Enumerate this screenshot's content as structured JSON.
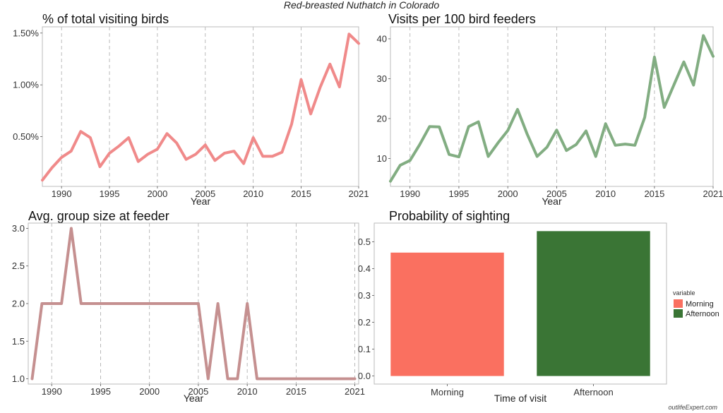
{
  "figure_title": "Red-breasted Nuthatch in Colorado",
  "watermark": "outlifeExpert.com",
  "colors": {
    "pct_line": "#f08a8a",
    "visits_line": "#82ad82",
    "group_line": "#c59090",
    "morning": "#fa7060",
    "afternoon": "#3a7535"
  },
  "chart_data": [
    {
      "type": "line",
      "title": "% of total visiting birds",
      "xlabel": "Year",
      "ylabel": "",
      "xlim": [
        1988,
        2021
      ],
      "ylim": [
        0.02,
        1.56
      ],
      "xticks": [
        1990,
        1995,
        2000,
        2005,
        2010,
        2015,
        2021
      ],
      "yticks": [
        0.5,
        1.0,
        1.5
      ],
      "ytick_labels": [
        "0.50%",
        "1.00%",
        "1.50%"
      ],
      "vgrid": true,
      "x": [
        1988,
        1989,
        1990,
        1991,
        1992,
        1993,
        1994,
        1995,
        1996,
        1997,
        1998,
        1999,
        2000,
        2001,
        2002,
        2003,
        2004,
        2005,
        2006,
        2007,
        2008,
        2009,
        2010,
        2011,
        2012,
        2013,
        2014,
        2015,
        2016,
        2017,
        2018,
        2019,
        2020,
        2021
      ],
      "y": [
        0.08,
        0.2,
        0.3,
        0.36,
        0.55,
        0.49,
        0.21,
        0.34,
        0.41,
        0.49,
        0.26,
        0.33,
        0.38,
        0.53,
        0.44,
        0.28,
        0.33,
        0.42,
        0.27,
        0.34,
        0.36,
        0.24,
        0.49,
        0.31,
        0.31,
        0.35,
        0.62,
        1.05,
        0.72,
        0.98,
        1.2,
        0.98,
        1.49,
        1.4
      ]
    },
    {
      "type": "line",
      "title": "Visits per 100 bird feeders",
      "xlabel": "Year",
      "ylabel": "",
      "xlim": [
        1988,
        2021
      ],
      "ylim": [
        3,
        43
      ],
      "xticks": [
        1990,
        1995,
        2000,
        2005,
        2010,
        2015,
        2021
      ],
      "yticks": [
        10,
        20,
        30,
        40
      ],
      "ytick_labels": [
        "10",
        "20",
        "30",
        "40"
      ],
      "vgrid": true,
      "x": [
        1988,
        1989,
        1990,
        1991,
        1992,
        1993,
        1994,
        1995,
        1996,
        1997,
        1998,
        1999,
        2000,
        2001,
        2002,
        2003,
        2004,
        2005,
        2006,
        2007,
        2008,
        2009,
        2010,
        2011,
        2012,
        2013,
        2014,
        2015,
        2016,
        2017,
        2018,
        2019,
        2020,
        2021
      ],
      "y": [
        4.3,
        8.3,
        9.5,
        13.5,
        18,
        17.9,
        11,
        10.4,
        18,
        19.2,
        10.5,
        13.9,
        17,
        22.3,
        16,
        10.5,
        12.8,
        17.1,
        12,
        13.5,
        16.9,
        10.5,
        18.7,
        13.3,
        13.6,
        13.3,
        20.3,
        35.4,
        22.8,
        28.5,
        34.2,
        28.4,
        40.8,
        35.6
      ]
    },
    {
      "type": "line",
      "title": "Avg. group size at feeder",
      "xlabel": "Year",
      "ylabel": "",
      "xlim": [
        1987.6,
        2021.4
      ],
      "ylim": [
        0.93,
        3.07
      ],
      "xticks": [
        1990,
        1995,
        2000,
        2005,
        2010,
        2015,
        2021
      ],
      "yticks": [
        1.0,
        1.5,
        2.0,
        2.5,
        3.0
      ],
      "ytick_labels": [
        "1.0",
        "1.5",
        "2.0",
        "2.5",
        "3.0"
      ],
      "vgrid": true,
      "x": [
        1988,
        1989,
        1990,
        1991,
        1992,
        1993,
        1994,
        1995,
        1996,
        1997,
        1998,
        1999,
        2000,
        2001,
        2002,
        2003,
        2004,
        2005,
        2006,
        2007,
        2008,
        2009,
        2010,
        2011,
        2012,
        2013,
        2014,
        2015,
        2016,
        2017,
        2018,
        2019,
        2020,
        2021
      ],
      "y": [
        1,
        2,
        2,
        2,
        3,
        2,
        2,
        2,
        2,
        2,
        2,
        2,
        2,
        2,
        2,
        2,
        2,
        2,
        1,
        2,
        1,
        1,
        2,
        1,
        1,
        1,
        1,
        1,
        1,
        1,
        1,
        1,
        1,
        1
      ]
    },
    {
      "type": "bar",
      "title": "Probability of sighting",
      "xlabel": "Time of visit",
      "ylabel": "",
      "categories": [
        "Morning",
        "Afternoon"
      ],
      "values": [
        0.46,
        0.54
      ],
      "ylim": [
        -0.03,
        0.57
      ],
      "yticks": [
        0.0,
        0.1,
        0.2,
        0.3,
        0.4,
        0.5
      ],
      "ytick_labels": [
        "0.0",
        "0.1",
        "0.2",
        "0.3",
        "0.4",
        "0.5"
      ],
      "grid": false,
      "legend": {
        "title": "variable",
        "position": "right",
        "entries": [
          "Morning",
          "Afternoon"
        ]
      }
    }
  ]
}
